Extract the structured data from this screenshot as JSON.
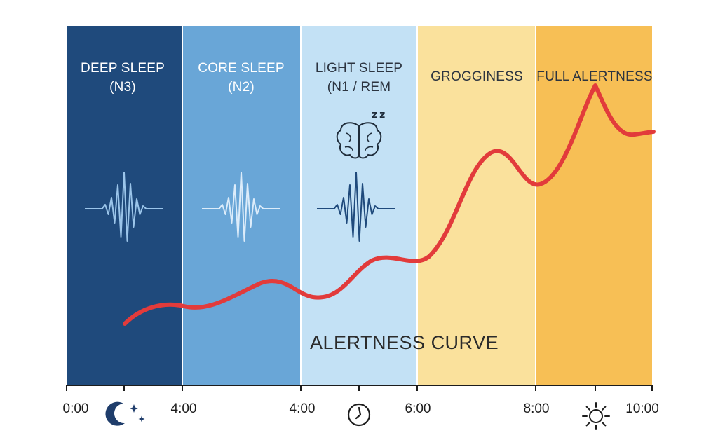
{
  "stages": [
    {
      "label_lines": [
        "DEEP SLEEP",
        "(N3)"
      ],
      "color": "#1f4a7c",
      "text_color": "#ffffff",
      "wave_color": "#9bc5ea",
      "wave_icon": "brainwave-icon"
    },
    {
      "label_lines": [
        "CORE SLEEP",
        "(N2)"
      ],
      "color": "#69a6d7",
      "text_color": "#ffffff",
      "wave_color": "#dcecfa",
      "wave_icon": "brainwave-icon"
    },
    {
      "label_lines": [
        "LIGHT SLEEP",
        "(N1 / REM"
      ],
      "color": "#c3e1f5",
      "text_color": "#2c3440",
      "wave_color": "#1f4a7c",
      "wave_icon": "brainwave-icon",
      "extra_icon": "brain-sleeping-icon",
      "extra_icon_text": "zz"
    },
    {
      "label_lines": [
        "GROGGINESS"
      ],
      "color": "#fae19c",
      "text_color": "#2c3440"
    },
    {
      "label_lines": [
        "FULL ALERTNESS"
      ],
      "color": "#f7bf55",
      "text_color": "#2c3440"
    }
  ],
  "time_axis": {
    "ticks": [
      "0:00",
      "4:00",
      "4:00",
      "6:00",
      "8:00",
      "10:00"
    ],
    "icons": [
      {
        "name": "moon-stars-icon",
        "color": "#1f3d6b"
      },
      {
        "name": "clock-icon",
        "color": "#1c1c1c"
      },
      {
        "name": "sun-icon",
        "color": "#1c1c1c"
      }
    ]
  },
  "curve": {
    "label": "ALERTNESS CURVE",
    "color": "#e23b3b"
  }
}
